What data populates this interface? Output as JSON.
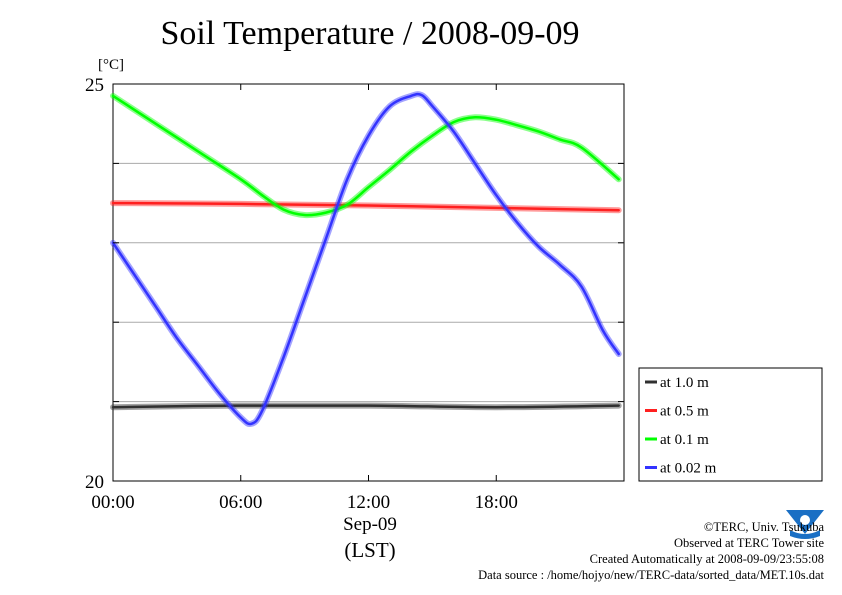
{
  "chart_data": {
    "type": "line",
    "title": "Soil Temperature / 2008-09-09",
    "ylabel": "[°C]",
    "xlabel": "(LST)",
    "date_label": "Sep-09",
    "xlim": [
      "00:00",
      "24:00"
    ],
    "ylim": [
      20,
      25
    ],
    "x_ticks": [
      "00:00",
      "06:00",
      "12:00",
      "18:00"
    ],
    "y_ticks": [
      20,
      25
    ],
    "grid": "horizontal, every 1 °C",
    "legend_position": "right",
    "series": [
      {
        "name": "at 1.0 m",
        "color": "#303030",
        "x": [
          "00:00",
          "06:00",
          "12:00",
          "18:00",
          "23:45"
        ],
        "y": [
          20.93,
          20.95,
          20.95,
          20.93,
          20.95
        ]
      },
      {
        "name": "at 0.5 m",
        "color": "#ff2020",
        "x": [
          "00:00",
          "06:00",
          "12:00",
          "18:00",
          "23:45"
        ],
        "y": [
          23.5,
          23.49,
          23.47,
          23.44,
          23.41
        ]
      },
      {
        "name": "at 0.1 m",
        "color": "#00ff00",
        "x": [
          "00:00",
          "02:00",
          "04:00",
          "06:00",
          "07:00",
          "08:00",
          "09:00",
          "10:00",
          "11:00",
          "12:00",
          "13:00",
          "14:00",
          "15:00",
          "16:00",
          "17:00",
          "18:00",
          "19:00",
          "20:00",
          "21:00",
          "22:00",
          "23:45"
        ],
        "y": [
          24.85,
          24.5,
          24.15,
          23.8,
          23.6,
          23.42,
          23.35,
          23.38,
          23.48,
          23.7,
          23.92,
          24.15,
          24.35,
          24.52,
          24.58,
          24.55,
          24.48,
          24.4,
          24.3,
          24.2,
          23.8
        ]
      },
      {
        "name": "at 0.02 m",
        "color": "#3333ff",
        "x": [
          "00:00",
          "01:00",
          "02:00",
          "03:00",
          "04:00",
          "05:00",
          "06:00",
          "06:30",
          "07:00",
          "08:00",
          "09:00",
          "10:00",
          "11:00",
          "12:00",
          "13:00",
          "14:00",
          "14:30",
          "15:00",
          "16:00",
          "17:00",
          "18:00",
          "19:00",
          "20:00",
          "21:00",
          "22:00",
          "23:00",
          "23:45"
        ],
        "y": [
          23.0,
          22.6,
          22.2,
          21.8,
          21.45,
          21.1,
          20.8,
          20.72,
          20.88,
          21.55,
          22.3,
          23.05,
          23.8,
          24.35,
          24.72,
          24.85,
          24.86,
          24.72,
          24.4,
          24.0,
          23.6,
          23.25,
          22.95,
          22.72,
          22.45,
          21.9,
          21.6
        ]
      }
    ]
  },
  "footer": {
    "credit": "©TERC, Univ. Tsukuba",
    "site": "Observed at TERC Tower site",
    "created": "Created Automatically at 2008-09-09/23:55:08",
    "source": "Data source : /home/hojyo/new/TERC-data/sorted_data/MET.10s.dat"
  },
  "logo": {
    "icon": "terc-logo-icon",
    "text": "TERC",
    "color": "#1a6fc4"
  }
}
